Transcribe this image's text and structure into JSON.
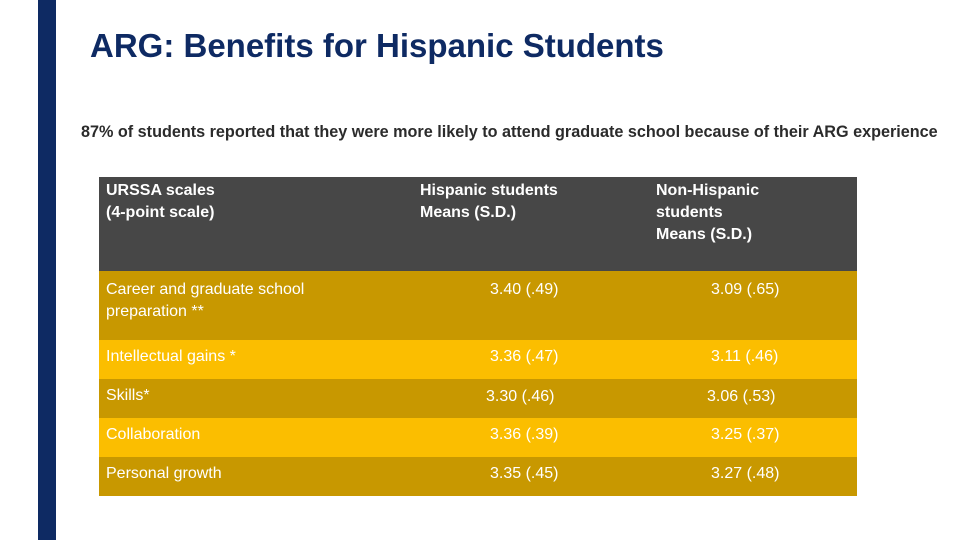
{
  "slide": {
    "title": "ARG: Benefits for Hispanic Students",
    "subtitle": "87% of students reported that they were more likely to attend graduate school because of their ARG experience"
  },
  "table": {
    "headers": {
      "scales": [
        "URSSA scales",
        "(4-point scale)"
      ],
      "hispanic": [
        "Hispanic students",
        "Means (S.D.)"
      ],
      "non_hispanic": [
        "Non-Hispanic",
        "students",
        "Means (S.D.)"
      ]
    },
    "rows": [
      {
        "label": [
          "Career and graduate school",
          "preparation **"
        ],
        "hispanic": "3.40  (.49)",
        "non_hispanic": "3.09  (.65)"
      },
      {
        "label": [
          "Intellectual gains *"
        ],
        "hispanic": "3.36  (.47)",
        "non_hispanic": "3.11  (.46)"
      },
      {
        "label": [
          "Skills*"
        ],
        "hispanic": "3.30   (.46)",
        "non_hispanic": "3.06   (.53)"
      },
      {
        "label": [
          "Collaboration"
        ],
        "hispanic": "3.36  (.39)",
        "non_hispanic": "3.25  (.37)"
      },
      {
        "label": [
          "Personal growth"
        ],
        "hispanic": "3.35  (.45)",
        "non_hispanic": "3.27  (.48)"
      }
    ]
  },
  "colors": {
    "accent_navy": "#0e2a63",
    "header_gray": "#474747",
    "row_dark_gold": "#c89800",
    "row_light_gold": "#fbbe00"
  }
}
